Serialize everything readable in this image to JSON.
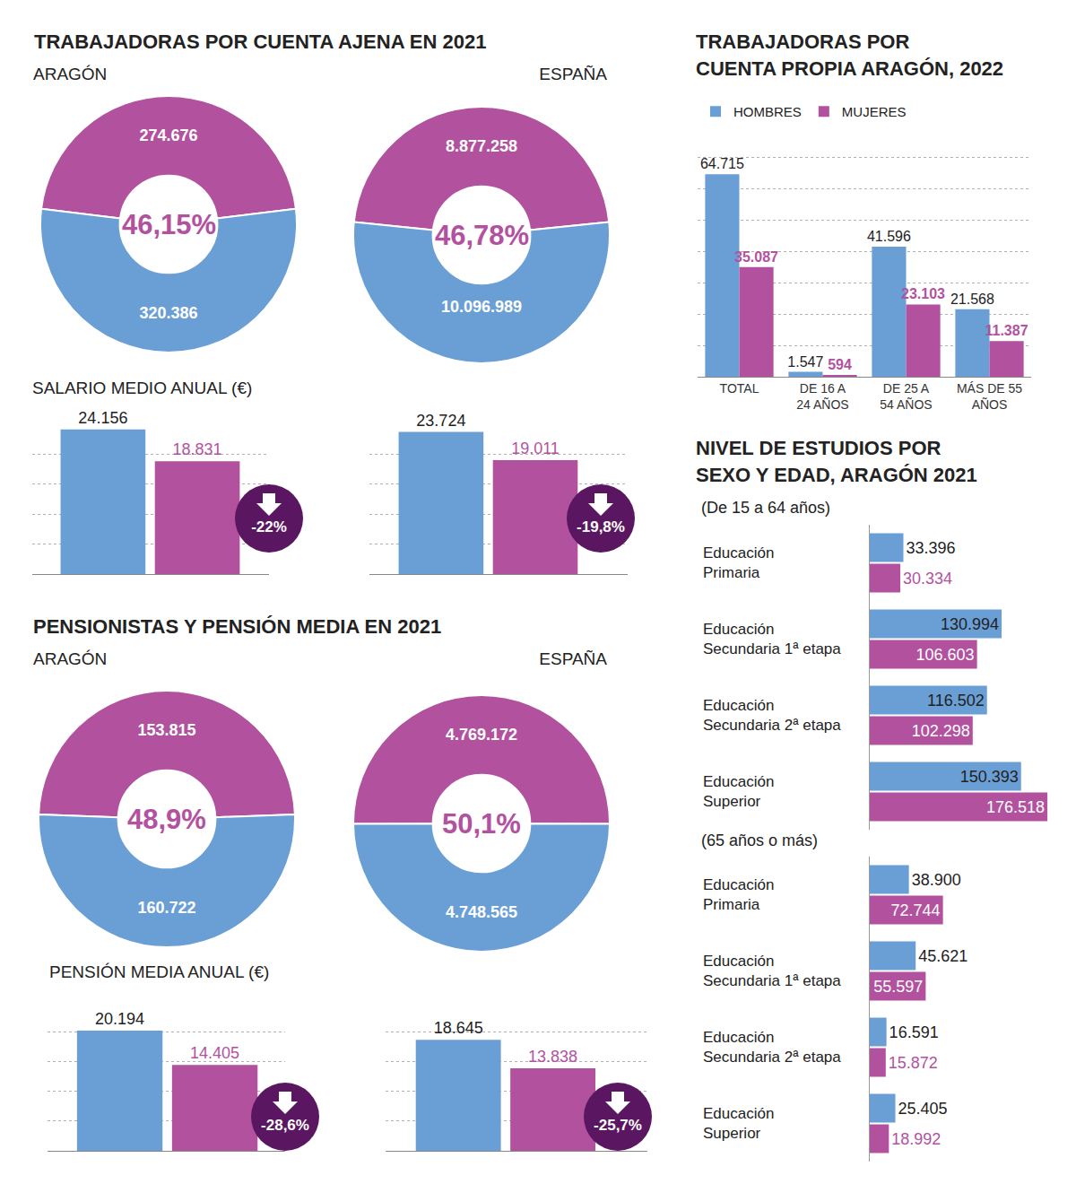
{
  "chart_data": [
    {
      "type": "pie",
      "title": "TRABAJADORAS POR CUENTA AJENA EN 2021",
      "subtitle": "ARAGÓN",
      "values": [
        274676,
        320386
      ],
      "value_labels": [
        "274.676",
        "320.386"
      ],
      "colors": [
        "#b2529f",
        "#6a9fd6"
      ],
      "annotations": [
        "46,15%"
      ],
      "data_labels": true
    },
    {
      "type": "pie",
      "subtitle": "ESPAÑA",
      "values": [
        8877258,
        10096989
      ],
      "value_labels": [
        "8.877.258",
        "10.096.989"
      ],
      "colors": [
        "#b2529f",
        "#6a9fd6"
      ],
      "annotations": [
        "46,78%"
      ],
      "data_labels": true
    },
    {
      "type": "bar",
      "title": "SALARIO MEDIO ANUAL (€)",
      "values": [
        24156,
        18831
      ],
      "value_labels": [
        "24.156",
        "18.831"
      ],
      "colors": [
        "#6a9fd6",
        "#b2529f"
      ],
      "ylim": [
        0,
        25000
      ],
      "yticks": [
        0,
        5000,
        10000,
        15000,
        20000,
        25000
      ],
      "grid": true,
      "tick_labels": false,
      "data_labels": true,
      "annotations": [
        "-22%"
      ]
    },
    {
      "type": "bar",
      "values": [
        23724,
        19011
      ],
      "value_labels": [
        "23.724",
        "19.011"
      ],
      "colors": [
        "#6a9fd6",
        "#b2529f"
      ],
      "ylim": [
        0,
        25000
      ],
      "yticks": [
        0,
        5000,
        10000,
        15000,
        20000,
        25000
      ],
      "grid": true,
      "tick_labels": false,
      "data_labels": true,
      "annotations": [
        "-19,8%"
      ]
    },
    {
      "type": "pie",
      "title": "PENSIONISTAS Y PENSIÓN MEDIA EN 2021",
      "subtitle": "ARAGÓN",
      "values": [
        153815,
        160722
      ],
      "value_labels": [
        "153.815",
        "160.722"
      ],
      "colors": [
        "#b2529f",
        "#6a9fd6"
      ],
      "annotations": [
        "48,9%"
      ],
      "data_labels": true
    },
    {
      "type": "pie",
      "subtitle": "ESPAÑA",
      "values": [
        4769172,
        4748565
      ],
      "value_labels": [
        "4.769.172",
        "4.748.565"
      ],
      "colors": [
        "#b2529f",
        "#6a9fd6"
      ],
      "annotations": [
        "50,1%"
      ],
      "data_labels": true
    },
    {
      "type": "bar",
      "title": "PENSIÓN MEDIA ANUAL (€)",
      "values": [
        20194,
        14405
      ],
      "value_labels": [
        "20.194",
        "14.405"
      ],
      "colors": [
        "#6a9fd6",
        "#b2529f"
      ],
      "ylim": [
        0,
        25000
      ],
      "yticks": [
        0,
        5000,
        10000,
        15000,
        20000,
        25000
      ],
      "grid": true,
      "tick_labels": false,
      "data_labels": true,
      "annotations": [
        "-28,6%"
      ]
    },
    {
      "type": "bar",
      "values": [
        18645,
        13838
      ],
      "value_labels": [
        "18.645",
        "13.838"
      ],
      "colors": [
        "#6a9fd6",
        "#b2529f"
      ],
      "ylim": [
        0,
        25000
      ],
      "yticks": [
        0,
        5000,
        10000,
        15000,
        20000,
        25000
      ],
      "grid": true,
      "tick_labels": false,
      "data_labels": true,
      "annotations": [
        "-25,7%"
      ]
    },
    {
      "type": "bar",
      "title": "TRABAJADORAS POR\nCUENTA PROPIA ARAGÓN, 2022",
      "categories": [
        "TOTAL",
        "DE 16 A\n24 AÑOS",
        "DE 25 A\n54 AÑOS",
        "MÁS DE 55\nAÑOS"
      ],
      "series": [
        {
          "name": "HOMBRES",
          "color": "#6a9fd6",
          "values": [
            64715,
            1547,
            41596,
            21568
          ],
          "value_labels": [
            "64.715",
            "1.547",
            "41.596",
            "21.568"
          ]
        },
        {
          "name": "MUJERES",
          "color": "#b2529f",
          "values": [
            35087,
            594,
            23103,
            11387
          ],
          "value_labels": [
            "35.087",
            "594",
            "23.103",
            "11.387"
          ]
        }
      ],
      "ylim": [
        0,
        80000
      ],
      "yticks": [
        0,
        10000,
        20000,
        30000,
        40000,
        50000,
        60000,
        70000,
        80000
      ],
      "grid": true,
      "tick_labels": "x",
      "legend": "top-left",
      "data_labels": true
    },
    {
      "type": "bar",
      "orientation": "horizontal",
      "title": "NIVEL DE ESTUDIOS POR\nSEXO Y EDAD, ARAGÓN 2021",
      "subtitle": "(De 15 a 64 años)",
      "categories": [
        "Educación\nPrimaria",
        "Educación\nSecundaria 1ª etapa",
        "Educación\nSecundaria 2ª etapa",
        "Educación\nSuperior"
      ],
      "series": [
        {
          "color": "#6a9fd6",
          "values": [
            33396,
            130994,
            116502,
            150393
          ],
          "value_labels": [
            "33.396",
            "130.994",
            "116.502",
            "150.393"
          ]
        },
        {
          "color": "#b2529f",
          "values": [
            30334,
            106603,
            102298,
            176518
          ],
          "value_labels": [
            "30.334",
            "106.603",
            "102.298",
            "176.518"
          ]
        }
      ],
      "xlim": [
        0,
        180000
      ],
      "xticks": [
        0,
        180000
      ],
      "grid": false,
      "tick_labels": "y",
      "data_labels": true
    },
    {
      "type": "bar",
      "orientation": "horizontal",
      "subtitle": "(65 años o más)",
      "categories": [
        "Educación\nPrimaria",
        "Educación\nSecundaria 1ª etapa",
        "Educación\nSecundaria 2ª etapa",
        "Educación\nSuperior"
      ],
      "series": [
        {
          "color": "#6a9fd6",
          "values": [
            38900,
            45621,
            16591,
            25405
          ],
          "value_labels": [
            "38.900",
            "45.621",
            "16.591",
            "25.405"
          ]
        },
        {
          "color": "#b2529f",
          "values": [
            72744,
            55597,
            15872,
            18992
          ],
          "value_labels": [
            "72.744",
            "55.597",
            "15.872",
            "18.992"
          ]
        }
      ],
      "xlim": [
        0,
        180000
      ],
      "xticks": [
        0,
        180000
      ],
      "grid": false,
      "tick_labels": "y",
      "data_labels": true
    }
  ]
}
